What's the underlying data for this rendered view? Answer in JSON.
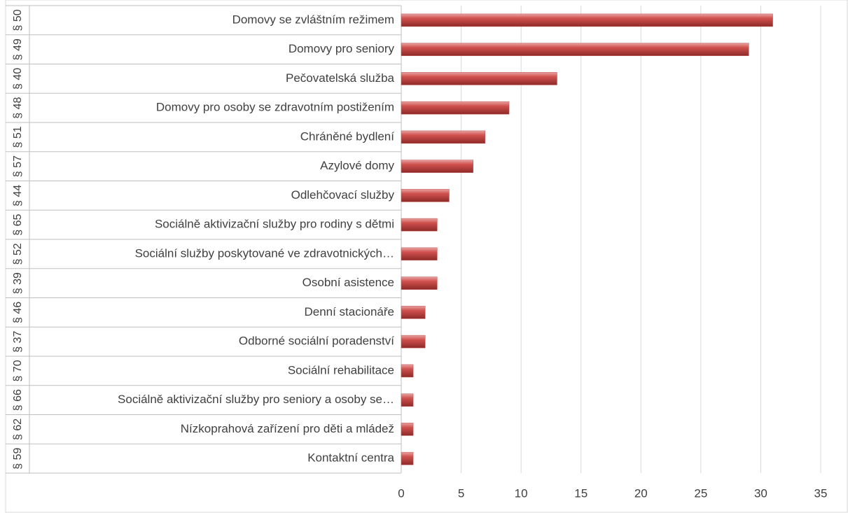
{
  "chart_data": {
    "type": "bar",
    "orientation": "horizontal",
    "categories": [
      "Domovy se zvláštním režimem",
      "Domovy pro seniory",
      "Pečovatelská služba",
      "Domovy pro osoby se zdravotním postižením",
      "Chráněné bydlení",
      "Azylové domy",
      "Odlehčovací služby",
      "Sociálně aktivizační služby pro rodiny s dětmi",
      "Sociální služby poskytované ve zdravotnických…",
      "Osobní asistence",
      "Denní stacionáře",
      "Odborné sociální poradenství",
      "Sociální rehabilitace",
      "Sociálně aktivizační služby pro seniory a osoby se…",
      "Nízkoprahová zařízení pro děti a mládež",
      "Kontaktní centra"
    ],
    "category_groups": [
      "§ 50",
      "§ 49",
      "§ 40",
      "§ 48",
      "§ 51",
      "§ 57",
      "§ 44",
      "§ 65",
      "§ 52",
      "§ 39",
      "§ 46",
      "§ 37",
      "§ 70",
      "§ 66",
      "§ 62",
      "§ 59"
    ],
    "values": [
      31,
      29,
      13,
      9,
      7,
      6,
      4,
      3,
      3,
      3,
      2,
      2,
      1,
      1,
      1,
      1
    ],
    "color": "#c0504d",
    "xlim": [
      0,
      35
    ],
    "xticks": [
      0,
      5,
      10,
      15,
      20,
      25,
      30,
      35
    ],
    "grid": true
  }
}
